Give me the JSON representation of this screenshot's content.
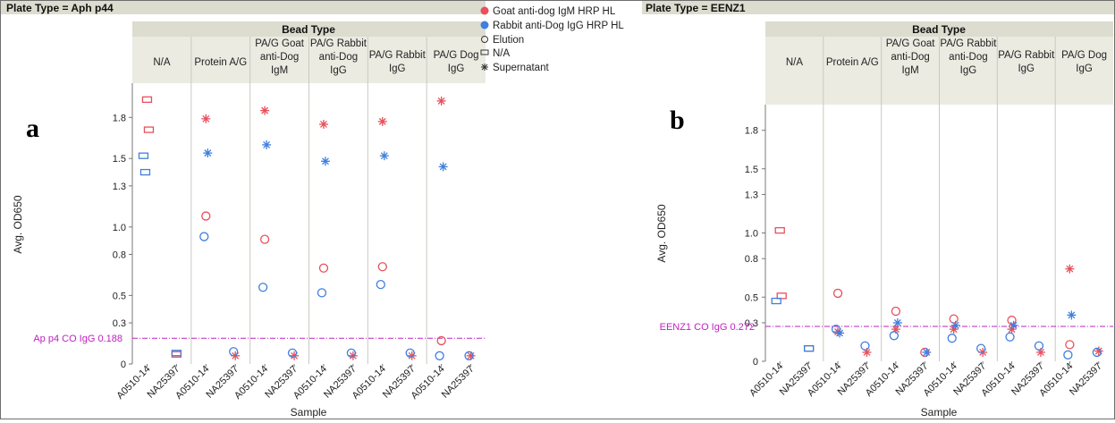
{
  "colors": {
    "goat": "#e8505b",
    "rabbit": "#3f7fe0",
    "refline": "#c020c0",
    "header_bg": "#dcdccf",
    "cat_bg": "#ebebe2",
    "divider": "#c9c9c0"
  },
  "legend": {
    "items": [
      {
        "label": "Goat anti-dog IgM HRP HL",
        "marker": "filled-goat"
      },
      {
        "label": "Rabbit anti-Dog IgG HRP HL",
        "marker": "filled-rabbit"
      },
      {
        "label": "Elution",
        "marker": "circle"
      },
      {
        "label": "N/A",
        "marker": "rect"
      },
      {
        "label": "Supernatant",
        "marker": "star"
      }
    ]
  },
  "chart_data": [
    {
      "type": "scatter",
      "panel_label": "a",
      "plate_header": "Plate Type = Aph p44",
      "group_header": "Bead Type",
      "categories": [
        [
          "N/A"
        ],
        [
          "Protein A/G"
        ],
        [
          "PA/G Goat",
          "anti-Dog",
          "IgM"
        ],
        [
          "PA/G Rabbit",
          "anti-Dog",
          "IgG"
        ],
        [
          "PA/G Rabbit",
          "IgG"
        ],
        [
          "PA/G Dog",
          "IgG"
        ]
      ],
      "samples": [
        "A0510-14",
        "NA25397"
      ],
      "ylabel": "Avg. OD650",
      "xlabel": "Sample",
      "ylim": [
        0,
        2.05
      ],
      "yticks": [
        0,
        0.3,
        0.5,
        0.8,
        1.0,
        1.3,
        1.5,
        1.8
      ],
      "ytick_labels": [
        "0",
        "0.3",
        "0.5",
        "0.8",
        "1.0",
        "1.3",
        "1.5",
        "1.8"
      ],
      "reference_line": {
        "label": "Ap p4 CO IgG 0.188",
        "y": 0.188
      },
      "series": [
        {
          "name": "Goat anti-dog IgM HRP HL",
          "color_key": "goat",
          "points": [
            {
              "cat": 0,
              "sample": 0,
              "shape": "rect",
              "y": 1.93
            },
            {
              "cat": 0,
              "sample": 0,
              "shape": "rect",
              "y": 1.71
            },
            {
              "cat": 0,
              "sample": 1,
              "shape": "rect",
              "y": 0.07
            },
            {
              "cat": 1,
              "sample": 0,
              "shape": "star",
              "y": 1.79
            },
            {
              "cat": 1,
              "sample": 0,
              "shape": "circle",
              "y": 1.08
            },
            {
              "cat": 1,
              "sample": 1,
              "shape": "star",
              "y": 0.06
            },
            {
              "cat": 2,
              "sample": 0,
              "shape": "star",
              "y": 1.85
            },
            {
              "cat": 2,
              "sample": 0,
              "shape": "circle",
              "y": 0.91
            },
            {
              "cat": 2,
              "sample": 1,
              "shape": "star",
              "y": 0.06
            },
            {
              "cat": 3,
              "sample": 0,
              "shape": "star",
              "y": 1.75
            },
            {
              "cat": 3,
              "sample": 0,
              "shape": "circle",
              "y": 0.7
            },
            {
              "cat": 3,
              "sample": 1,
              "shape": "star",
              "y": 0.06
            },
            {
              "cat": 4,
              "sample": 0,
              "shape": "star",
              "y": 1.77
            },
            {
              "cat": 4,
              "sample": 0,
              "shape": "circle",
              "y": 0.71
            },
            {
              "cat": 4,
              "sample": 1,
              "shape": "star",
              "y": 0.06
            },
            {
              "cat": 5,
              "sample": 0,
              "shape": "star",
              "y": 1.92
            },
            {
              "cat": 5,
              "sample": 0,
              "shape": "circle",
              "y": 0.17
            },
            {
              "cat": 5,
              "sample": 1,
              "shape": "star",
              "y": 0.06
            }
          ]
        },
        {
          "name": "Rabbit anti-Dog IgG HRP HL",
          "color_key": "rabbit",
          "points": [
            {
              "cat": 0,
              "sample": 0,
              "shape": "rect",
              "y": 1.52
            },
            {
              "cat": 0,
              "sample": 0,
              "shape": "rect",
              "y": 1.4
            },
            {
              "cat": 0,
              "sample": 1,
              "shape": "rect",
              "y": 0.08
            },
            {
              "cat": 1,
              "sample": 0,
              "shape": "star",
              "y": 1.54
            },
            {
              "cat": 1,
              "sample": 0,
              "shape": "circle",
              "y": 0.93
            },
            {
              "cat": 1,
              "sample": 1,
              "shape": "circle",
              "y": 0.09
            },
            {
              "cat": 2,
              "sample": 0,
              "shape": "star",
              "y": 1.6
            },
            {
              "cat": 2,
              "sample": 0,
              "shape": "circle",
              "y": 0.56
            },
            {
              "cat": 2,
              "sample": 1,
              "shape": "circle",
              "y": 0.08
            },
            {
              "cat": 3,
              "sample": 0,
              "shape": "star",
              "y": 1.48
            },
            {
              "cat": 3,
              "sample": 0,
              "shape": "circle",
              "y": 0.52
            },
            {
              "cat": 3,
              "sample": 1,
              "shape": "circle",
              "y": 0.08
            },
            {
              "cat": 4,
              "sample": 0,
              "shape": "star",
              "y": 1.52
            },
            {
              "cat": 4,
              "sample": 0,
              "shape": "circle",
              "y": 0.58
            },
            {
              "cat": 4,
              "sample": 1,
              "shape": "circle",
              "y": 0.08
            },
            {
              "cat": 5,
              "sample": 0,
              "shape": "star",
              "y": 1.44
            },
            {
              "cat": 5,
              "sample": 0,
              "shape": "circle",
              "y": 0.06
            },
            {
              "cat": 5,
              "sample": 1,
              "shape": "circle",
              "y": 0.06
            }
          ]
        }
      ]
    },
    {
      "type": "scatter",
      "panel_label": "b",
      "plate_header": "Plate Type = EENZ1",
      "group_header": "Bead Type",
      "categories": [
        [
          "N/A"
        ],
        [
          "Protein A/G"
        ],
        [
          "PA/G Goat",
          "anti-Dog",
          "IgM"
        ],
        [
          "PA/G Rabbit",
          "anti-Dog",
          "IgG"
        ],
        [
          "PA/G Rabbit",
          "IgG"
        ],
        [
          "PA/G Dog",
          "IgG"
        ]
      ],
      "samples": [
        "A0510-14",
        "NA25397"
      ],
      "ylabel": "Avg. OD650",
      "xlabel": "Sample",
      "ylim": [
        0,
        2.0
      ],
      "yticks": [
        0,
        0.3,
        0.5,
        0.8,
        1.0,
        1.3,
        1.5,
        1.8
      ],
      "ytick_labels": [
        "0",
        "0.3",
        "0.5",
        "0.8",
        "1.0",
        "1.3",
        "1.5",
        "1.8"
      ],
      "reference_line": {
        "label": "EENZ1 CO IgG 0.272",
        "y": 0.272
      },
      "series": [
        {
          "name": "Goat anti-dog IgM HRP HL",
          "color_key": "goat",
          "points": [
            {
              "cat": 0,
              "sample": 0,
              "shape": "rect",
              "y": 1.02
            },
            {
              "cat": 0,
              "sample": 0,
              "shape": "rect",
              "y": 0.51
            },
            {
              "cat": 0,
              "sample": 1,
              "shape": "rect",
              "y": 0.1
            },
            {
              "cat": 1,
              "sample": 0,
              "shape": "circle",
              "y": 0.53
            },
            {
              "cat": 1,
              "sample": 0,
              "shape": "star",
              "y": 0.23
            },
            {
              "cat": 1,
              "sample": 1,
              "shape": "star",
              "y": 0.07
            },
            {
              "cat": 2,
              "sample": 0,
              "shape": "circle",
              "y": 0.39
            },
            {
              "cat": 2,
              "sample": 0,
              "shape": "star",
              "y": 0.25
            },
            {
              "cat": 2,
              "sample": 1,
              "shape": "circle",
              "y": 0.07
            },
            {
              "cat": 3,
              "sample": 0,
              "shape": "circle",
              "y": 0.33
            },
            {
              "cat": 3,
              "sample": 0,
              "shape": "star",
              "y": 0.25
            },
            {
              "cat": 3,
              "sample": 1,
              "shape": "star",
              "y": 0.07
            },
            {
              "cat": 4,
              "sample": 0,
              "shape": "circle",
              "y": 0.32
            },
            {
              "cat": 4,
              "sample": 0,
              "shape": "star",
              "y": 0.25
            },
            {
              "cat": 4,
              "sample": 1,
              "shape": "star",
              "y": 0.07
            },
            {
              "cat": 5,
              "sample": 0,
              "shape": "star",
              "y": 0.72
            },
            {
              "cat": 5,
              "sample": 0,
              "shape": "circle",
              "y": 0.13
            },
            {
              "cat": 5,
              "sample": 1,
              "shape": "star",
              "y": 0.08
            }
          ]
        },
        {
          "name": "Rabbit anti-Dog IgG HRP HL",
          "color_key": "rabbit",
          "points": [
            {
              "cat": 0,
              "sample": 0,
              "shape": "rect",
              "y": 0.47
            },
            {
              "cat": 0,
              "sample": 1,
              "shape": "rect",
              "y": 0.1
            },
            {
              "cat": 1,
              "sample": 0,
              "shape": "circle",
              "y": 0.25
            },
            {
              "cat": 1,
              "sample": 0,
              "shape": "star",
              "y": 0.22
            },
            {
              "cat": 1,
              "sample": 1,
              "shape": "circle",
              "y": 0.12
            },
            {
              "cat": 2,
              "sample": 0,
              "shape": "circle",
              "y": 0.2
            },
            {
              "cat": 2,
              "sample": 0,
              "shape": "star",
              "y": 0.3
            },
            {
              "cat": 2,
              "sample": 1,
              "shape": "star",
              "y": 0.07
            },
            {
              "cat": 3,
              "sample": 0,
              "shape": "circle",
              "y": 0.18
            },
            {
              "cat": 3,
              "sample": 0,
              "shape": "star",
              "y": 0.28
            },
            {
              "cat": 3,
              "sample": 1,
              "shape": "circle",
              "y": 0.1
            },
            {
              "cat": 4,
              "sample": 0,
              "shape": "circle",
              "y": 0.19
            },
            {
              "cat": 4,
              "sample": 0,
              "shape": "star",
              "y": 0.28
            },
            {
              "cat": 4,
              "sample": 1,
              "shape": "circle",
              "y": 0.12
            },
            {
              "cat": 5,
              "sample": 0,
              "shape": "star",
              "y": 0.36
            },
            {
              "cat": 5,
              "sample": 0,
              "shape": "circle",
              "y": 0.05
            },
            {
              "cat": 5,
              "sample": 1,
              "shape": "circle",
              "y": 0.07
            }
          ]
        }
      ]
    }
  ]
}
